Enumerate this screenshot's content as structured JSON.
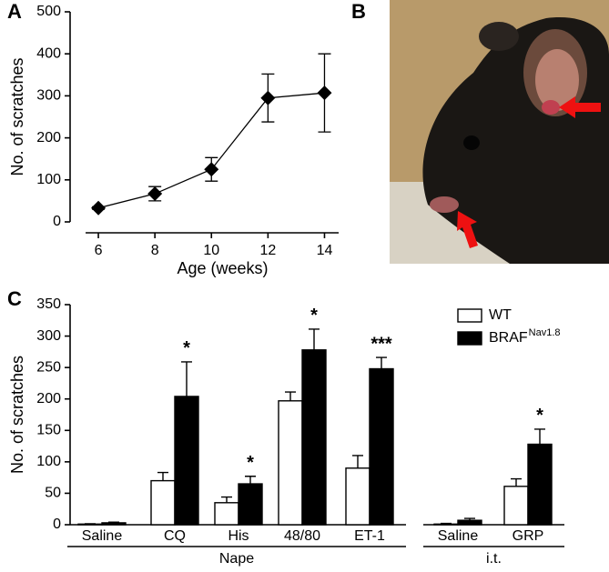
{
  "chart_data": [
    {
      "type": "line",
      "panel_label": "A",
      "xlabel": "Age (weeks)",
      "ylabel": "No. of scratches",
      "x": [
        6,
        8,
        10,
        12,
        14
      ],
      "xlim": [
        5,
        14.5
      ],
      "xticks": [
        6,
        8,
        10,
        12,
        14
      ],
      "ylim": [
        0,
        500
      ],
      "yticks": [
        0,
        100,
        200,
        300,
        400,
        500
      ],
      "series": [
        {
          "color": "#000000",
          "values": [
            33,
            67,
            125,
            295,
            307
          ],
          "errors": [
            3,
            17,
            28,
            57,
            93
          ]
        }
      ]
    },
    {
      "type": "bar",
      "panel_label": "C",
      "ylabel": "No. of scratches",
      "categories": [
        "Saline",
        "CQ",
        "His",
        "48/80",
        "ET-1",
        "Saline",
        "GRP"
      ],
      "category_groups": [
        "Nape",
        "Nape",
        "Nape",
        "Nape",
        "Nape",
        "i.t.",
        "i.t."
      ],
      "significance": [
        null,
        "*",
        "*",
        "*",
        "***",
        null,
        "*"
      ],
      "ylim": [
        0,
        350
      ],
      "yticks": [
        0,
        50,
        100,
        150,
        200,
        250,
        300,
        350
      ],
      "series": [
        {
          "name": "WT",
          "color": "#ffffff",
          "values": [
            1,
            70,
            35,
            197,
            90,
            1,
            61
          ],
          "errors": [
            0.5,
            13,
            9,
            14,
            20,
            1,
            12
          ]
        },
        {
          "name": "BRAF",
          "name_superscript": "Nav1.8",
          "color": "#000000",
          "values": [
            3,
            204,
            65,
            278,
            248,
            7,
            128
          ],
          "errors": [
            1,
            55,
            12,
            33,
            18,
            3,
            24
          ]
        }
      ]
    }
  ],
  "photo_panel": {
    "label": "B"
  }
}
